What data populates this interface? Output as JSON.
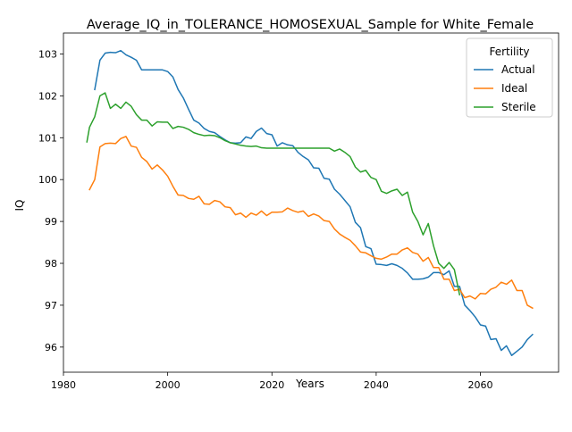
{
  "chart_data": {
    "type": "line",
    "title": "Average_IQ_in_TOLERANCE_HOMOSEXUAL_Sample for White_Female",
    "xlabel": "Years",
    "ylabel": "IQ",
    "xlim": [
      1980,
      2075
    ],
    "ylim": [
      95.4,
      103.5
    ],
    "x_ticks": [
      1980,
      2000,
      2020,
      2040,
      2060
    ],
    "y_ticks": [
      96,
      97,
      98,
      99,
      100,
      101,
      102,
      103
    ],
    "grid": false,
    "legend": {
      "title": "Fertility",
      "position": "top-right"
    },
    "series": [
      {
        "name": "Actual",
        "color": "#1f77b4",
        "points": [
          [
            1986,
            102.15
          ],
          [
            1987,
            102.85
          ],
          [
            1988,
            103.02
          ],
          [
            1989,
            103.04
          ],
          [
            1990,
            103.03
          ],
          [
            1991,
            103.08
          ],
          [
            1992,
            102.98
          ],
          [
            1993,
            102.92
          ],
          [
            1994,
            102.85
          ],
          [
            1995,
            102.62
          ],
          [
            1996,
            102.62
          ],
          [
            1997,
            102.62
          ],
          [
            1998,
            102.62
          ],
          [
            1999,
            102.62
          ],
          [
            2000,
            102.58
          ],
          [
            2001,
            102.45
          ],
          [
            2002,
            102.15
          ],
          [
            2003,
            101.95
          ],
          [
            2004,
            101.68
          ],
          [
            2005,
            101.42
          ],
          [
            2006,
            101.35
          ],
          [
            2007,
            101.22
          ],
          [
            2008,
            101.15
          ],
          [
            2009,
            101.12
          ],
          [
            2010,
            101.03
          ],
          [
            2011,
            100.95
          ],
          [
            2012,
            100.88
          ],
          [
            2013,
            100.87
          ],
          [
            2014,
            100.88
          ],
          [
            2015,
            101.02
          ],
          [
            2016,
            100.98
          ],
          [
            2017,
            101.15
          ],
          [
            2018,
            101.23
          ],
          [
            2019,
            101.1
          ],
          [
            2020,
            101.07
          ],
          [
            2021,
            100.8
          ],
          [
            2022,
            100.88
          ],
          [
            2023,
            100.83
          ],
          [
            2024,
            100.81
          ],
          [
            2025,
            100.65
          ],
          [
            2026,
            100.55
          ],
          [
            2027,
            100.47
          ],
          [
            2028,
            100.28
          ],
          [
            2029,
            100.27
          ],
          [
            2030,
            100.03
          ],
          [
            2031,
            100.01
          ],
          [
            2032,
            99.77
          ],
          [
            2033,
            99.65
          ],
          [
            2034,
            99.5
          ],
          [
            2035,
            99.35
          ],
          [
            2036,
            98.98
          ],
          [
            2037,
            98.85
          ],
          [
            2038,
            98.4
          ],
          [
            2039,
            98.35
          ],
          [
            2040,
            97.98
          ],
          [
            2041,
            97.97
          ],
          [
            2042,
            97.95
          ],
          [
            2043,
            97.99
          ],
          [
            2044,
            97.95
          ],
          [
            2045,
            97.88
          ],
          [
            2046,
            97.77
          ],
          [
            2047,
            97.62
          ],
          [
            2048,
            97.62
          ],
          [
            2049,
            97.63
          ],
          [
            2050,
            97.67
          ],
          [
            2051,
            97.78
          ],
          [
            2052,
            97.78
          ],
          [
            2053,
            97.73
          ],
          [
            2054,
            97.82
          ],
          [
            2055,
            97.45
          ],
          [
            2056,
            97.45
          ],
          [
            2057,
            97.0
          ],
          [
            2058,
            96.87
          ],
          [
            2059,
            96.72
          ],
          [
            2060,
            96.53
          ],
          [
            2061,
            96.5
          ],
          [
            2062,
            96.18
          ],
          [
            2063,
            96.2
          ],
          [
            2064,
            95.92
          ],
          [
            2065,
            96.03
          ],
          [
            2066,
            95.8
          ],
          [
            2067,
            95.9
          ],
          [
            2068,
            96.0
          ],
          [
            2069,
            96.18
          ],
          [
            2070,
            96.3
          ]
        ]
      },
      {
        "name": "Ideal",
        "color": "#ff7f0e",
        "points": [
          [
            1985,
            99.76
          ],
          [
            1986,
            100.0
          ],
          [
            1987,
            100.78
          ],
          [
            1988,
            100.86
          ],
          [
            1989,
            100.87
          ],
          [
            1990,
            100.86
          ],
          [
            1991,
            100.98
          ],
          [
            1992,
            101.03
          ],
          [
            1993,
            100.8
          ],
          [
            1994,
            100.77
          ],
          [
            1995,
            100.53
          ],
          [
            1996,
            100.43
          ],
          [
            1997,
            100.25
          ],
          [
            1998,
            100.35
          ],
          [
            1999,
            100.23
          ],
          [
            2000,
            100.08
          ],
          [
            2001,
            99.84
          ],
          [
            2002,
            99.63
          ],
          [
            2003,
            99.62
          ],
          [
            2004,
            99.55
          ],
          [
            2005,
            99.53
          ],
          [
            2006,
            99.6
          ],
          [
            2007,
            99.42
          ],
          [
            2008,
            99.41
          ],
          [
            2009,
            99.5
          ],
          [
            2010,
            99.47
          ],
          [
            2011,
            99.35
          ],
          [
            2012,
            99.33
          ],
          [
            2013,
            99.16
          ],
          [
            2014,
            99.2
          ],
          [
            2015,
            99.1
          ],
          [
            2016,
            99.2
          ],
          [
            2017,
            99.15
          ],
          [
            2018,
            99.25
          ],
          [
            2019,
            99.14
          ],
          [
            2020,
            99.22
          ],
          [
            2021,
            99.22
          ],
          [
            2022,
            99.23
          ],
          [
            2023,
            99.32
          ],
          [
            2024,
            99.26
          ],
          [
            2025,
            99.22
          ],
          [
            2026,
            99.25
          ],
          [
            2027,
            99.12
          ],
          [
            2028,
            99.18
          ],
          [
            2029,
            99.13
          ],
          [
            2030,
            99.02
          ],
          [
            2031,
            99.0
          ],
          [
            2032,
            98.82
          ],
          [
            2033,
            98.7
          ],
          [
            2034,
            98.62
          ],
          [
            2035,
            98.55
          ],
          [
            2036,
            98.42
          ],
          [
            2037,
            98.27
          ],
          [
            2038,
            98.25
          ],
          [
            2039,
            98.18
          ],
          [
            2040,
            98.12
          ],
          [
            2041,
            98.1
          ],
          [
            2042,
            98.15
          ],
          [
            2043,
            98.22
          ],
          [
            2044,
            98.22
          ],
          [
            2045,
            98.32
          ],
          [
            2046,
            98.37
          ],
          [
            2047,
            98.26
          ],
          [
            2048,
            98.22
          ],
          [
            2049,
            98.05
          ],
          [
            2050,
            98.14
          ],
          [
            2051,
            97.9
          ],
          [
            2052,
            97.9
          ],
          [
            2053,
            97.62
          ],
          [
            2054,
            97.62
          ],
          [
            2055,
            97.35
          ],
          [
            2056,
            97.38
          ],
          [
            2057,
            97.18
          ],
          [
            2058,
            97.22
          ],
          [
            2059,
            97.15
          ],
          [
            2060,
            97.28
          ],
          [
            2061,
            97.27
          ],
          [
            2062,
            97.38
          ],
          [
            2063,
            97.43
          ],
          [
            2064,
            97.55
          ],
          [
            2065,
            97.5
          ],
          [
            2066,
            97.6
          ],
          [
            2067,
            97.35
          ],
          [
            2068,
            97.35
          ],
          [
            2069,
            97.0
          ],
          [
            2070,
            96.93
          ]
        ]
      },
      {
        "name": "Sterile",
        "color": "#2ca02c",
        "points": [
          [
            1984.5,
            100.9
          ],
          [
            1985,
            101.25
          ],
          [
            1986,
            101.5
          ],
          [
            1987,
            102.0
          ],
          [
            1988,
            102.07
          ],
          [
            1989,
            101.7
          ],
          [
            1990,
            101.8
          ],
          [
            1991,
            101.7
          ],
          [
            1992,
            101.85
          ],
          [
            1993,
            101.75
          ],
          [
            1994,
            101.55
          ],
          [
            1995,
            101.42
          ],
          [
            1996,
            101.42
          ],
          [
            1997,
            101.28
          ],
          [
            1998,
            101.38
          ],
          [
            1999,
            101.37
          ],
          [
            2000,
            101.37
          ],
          [
            2001,
            101.22
          ],
          [
            2002,
            101.27
          ],
          [
            2003,
            101.25
          ],
          [
            2004,
            101.2
          ],
          [
            2005,
            101.12
          ],
          [
            2006,
            101.08
          ],
          [
            2007,
            101.05
          ],
          [
            2008,
            101.06
          ],
          [
            2009,
            101.05
          ],
          [
            2010,
            101.0
          ],
          [
            2011,
            100.93
          ],
          [
            2012,
            100.88
          ],
          [
            2013,
            100.85
          ],
          [
            2014,
            100.82
          ],
          [
            2015,
            100.8
          ],
          [
            2016,
            100.79
          ],
          [
            2017,
            100.8
          ],
          [
            2018,
            100.76
          ],
          [
            2019,
            100.75
          ],
          [
            2020,
            100.75
          ],
          [
            2021,
            100.75
          ],
          [
            2022,
            100.75
          ],
          [
            2023,
            100.75
          ],
          [
            2024,
            100.75
          ],
          [
            2025,
            100.75
          ],
          [
            2026,
            100.75
          ],
          [
            2027,
            100.75
          ],
          [
            2028,
            100.75
          ],
          [
            2029,
            100.75
          ],
          [
            2030,
            100.75
          ],
          [
            2031,
            100.75
          ],
          [
            2032,
            100.68
          ],
          [
            2033,
            100.73
          ],
          [
            2034,
            100.65
          ],
          [
            2035,
            100.55
          ],
          [
            2036,
            100.3
          ],
          [
            2037,
            100.18
          ],
          [
            2038,
            100.22
          ],
          [
            2039,
            100.05
          ],
          [
            2040,
            100.0
          ],
          [
            2041,
            99.72
          ],
          [
            2042,
            99.67
          ],
          [
            2043,
            99.73
          ],
          [
            2044,
            99.77
          ],
          [
            2045,
            99.62
          ],
          [
            2046,
            99.7
          ],
          [
            2047,
            99.22
          ],
          [
            2048,
            99.0
          ],
          [
            2049,
            98.68
          ],
          [
            2050,
            98.95
          ],
          [
            2051,
            98.42
          ],
          [
            2052,
            98.0
          ],
          [
            2053,
            97.88
          ],
          [
            2054,
            98.02
          ],
          [
            2055,
            97.85
          ],
          [
            2056,
            97.25
          ]
        ]
      }
    ]
  }
}
